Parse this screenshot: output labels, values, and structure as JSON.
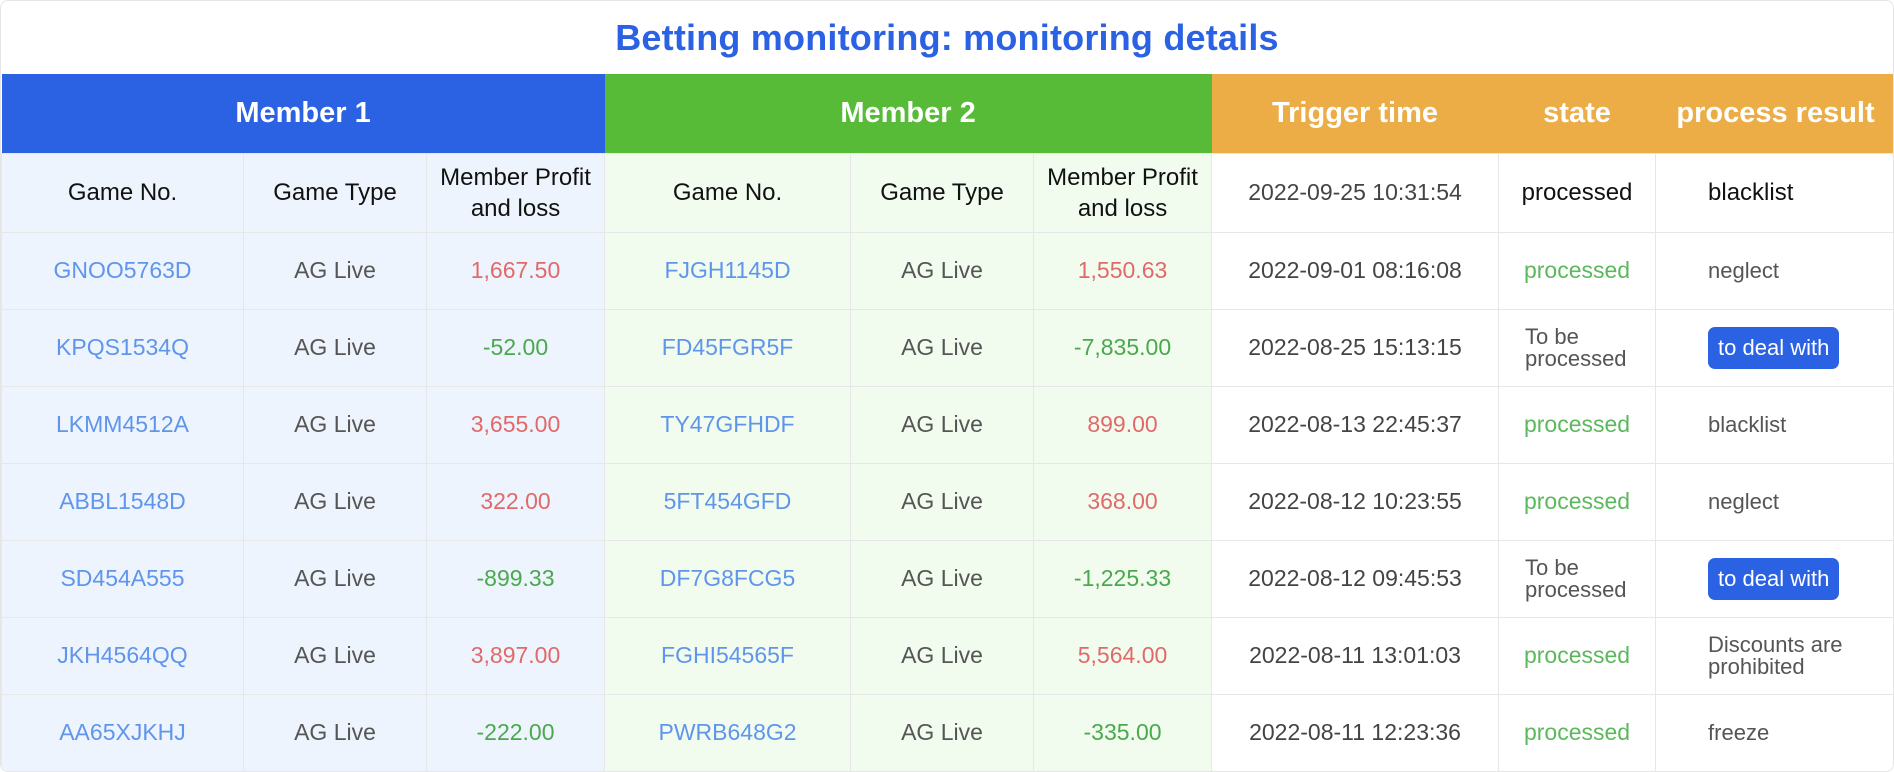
{
  "title": "Betting monitoring: monitoring details",
  "groups": {
    "member1": "Member 1",
    "member2": "Member 2",
    "trigger_time": "Trigger time",
    "state": "state",
    "process_result": "process result"
  },
  "sub_headers": {
    "game_no": "Game No.",
    "game_type": "Game Type",
    "profit_line1": "Member Profit",
    "profit_line2": "and loss"
  },
  "header_row": {
    "trigger_time": "2022-09-25 10:31:54",
    "state": "processed",
    "result": "blacklist"
  },
  "rows": [
    {
      "m1_no": "GNOO5763D",
      "m1_type": "AG Live",
      "m1_pl": "1,667.50",
      "m1_sign": "pos",
      "m2_no": "FJGH1145D",
      "m2_type": "AG Live",
      "m2_pl": "1,550.63",
      "m2_sign": "pos",
      "time": "2022-09-01 08:16:08",
      "state": "processed",
      "result": "neglect"
    },
    {
      "m1_no": "KPQS1534Q",
      "m1_type": "AG Live",
      "m1_pl": "-52.00",
      "m1_sign": "neg",
      "m2_no": "FD45FGR5F",
      "m2_type": "AG Live",
      "m2_pl": "-7,835.00",
      "m2_sign": "neg",
      "time": "2022-08-25 15:13:15",
      "state": "To be processed",
      "result": "to deal with"
    },
    {
      "m1_no": "LKMM4512A",
      "m1_type": "AG Live",
      "m1_pl": "3,655.00",
      "m1_sign": "pos",
      "m2_no": "TY47GFHDF",
      "m2_type": "AG Live",
      "m2_pl": "899.00",
      "m2_sign": "pos",
      "time": "2022-08-13 22:45:37",
      "state": "processed",
      "result": "blacklist"
    },
    {
      "m1_no": "ABBL1548D",
      "m1_type": "AG Live",
      "m1_pl": "322.00",
      "m1_sign": "pos",
      "m2_no": "5FT454GFD",
      "m2_type": "AG Live",
      "m2_pl": "368.00",
      "m2_sign": "pos",
      "time": "2022-08-12 10:23:55",
      "state": "processed",
      "result": "neglect"
    },
    {
      "m1_no": "SD454A555",
      "m1_type": "AG Live",
      "m1_pl": "-899.33",
      "m1_sign": "neg",
      "m2_no": "DF7G8FCG5",
      "m2_type": "AG Live",
      "m2_pl": "-1,225.33",
      "m2_sign": "neg",
      "time": "2022-08-12 09:45:53",
      "state": "To be processed",
      "result": "to deal with"
    },
    {
      "m1_no": "JKH4564QQ",
      "m1_type": "AG Live",
      "m1_pl": "3,897.00",
      "m1_sign": "pos",
      "m2_no": "FGHI54565F",
      "m2_type": "AG Live",
      "m2_pl": "5,564.00",
      "m2_sign": "pos",
      "time": "2022-08-11 13:01:03",
      "state": "processed",
      "result": "Discounts are prohibited"
    },
    {
      "m1_no": "AA65XJKHJ",
      "m1_type": "AG Live",
      "m1_pl": "-222.00",
      "m1_sign": "neg",
      "m2_no": "PWRB648G2",
      "m2_type": "AG Live",
      "m2_pl": "-335.00",
      "m2_sign": "neg",
      "time": "2022-08-11 12:23:36",
      "state": "processed",
      "result": "freeze"
    }
  ],
  "colors": {
    "blue": "#2b62e3",
    "green": "#57bb37",
    "orange": "#ecad46",
    "profit": "#e06a6a",
    "loss": "#4aa84d",
    "processed": "#5cb85c",
    "link": "#5f95ea"
  }
}
